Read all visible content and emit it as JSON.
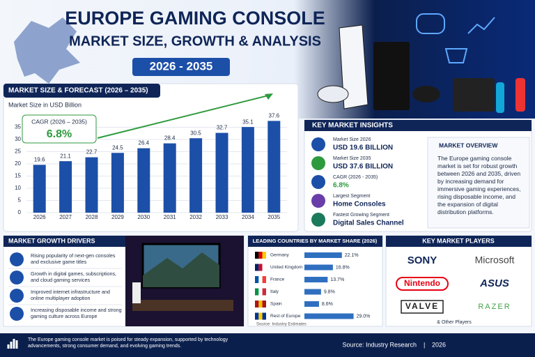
{
  "header": {
    "title": "EUROPE GAMING CONSOLE",
    "subtitle": "MARKET SIZE, GROWTH & ANALYSIS",
    "period": "2026 - 2035"
  },
  "chart_data": [
    {
      "type": "bar",
      "title": "MARKET SIZE & FORECAST (2026 – 2035)",
      "y_label": "Market Size in USD Billion",
      "categories": [
        "2026",
        "2027",
        "2028",
        "2029",
        "2030",
        "2031",
        "2032",
        "2033",
        "2034",
        "2035"
      ],
      "values": [
        19.6,
        21.1,
        22.7,
        24.5,
        26.4,
        28.4,
        30.5,
        32.7,
        35.1,
        37.6
      ],
      "color": "#1c4fa8",
      "ylim": [
        0,
        38
      ],
      "yticks": [
        0,
        5,
        10,
        15,
        20,
        25,
        30,
        35
      ],
      "grid": true,
      "annotation": {
        "label": "CAGR (2026 – 2035)",
        "value": "6.8%"
      }
    },
    {
      "type": "hbar",
      "title": "LEADING COUNTRIES BY MARKET SHARE (2026)",
      "categories": [
        "Germany",
        "United Kingdom",
        "France",
        "Italy",
        "Spain",
        "Rest of Europe"
      ],
      "values": [
        22.1,
        16.8,
        13.7,
        9.8,
        8.6,
        29.0
      ],
      "value_labels": [
        "22.1%",
        "16.8%",
        "13.7%",
        "9.8%",
        "8.6%",
        "29.0%"
      ],
      "color": "#2f6fc0",
      "xlim": [
        0,
        30
      ],
      "source": "Source: Industry Estimates"
    }
  ],
  "insights": {
    "title": "KEY MARKET INSIGHTS",
    "items": [
      {
        "label": "Market Size 2026",
        "value": "USD 19.6 BILLION"
      },
      {
        "label": "Market Size 2035",
        "value": "USD 37.6 BILLION"
      },
      {
        "label": "CAGR (2026 - 2035)",
        "value": "6.8%"
      },
      {
        "label": "Largest Segment",
        "value": "Home Consoles"
      },
      {
        "label": "Fastest Growing Segment",
        "value": "Digital Sales Channel"
      }
    ]
  },
  "overview": {
    "title": "MARKET OVERVIEW",
    "text": "The Europe gaming console market is set for robust growth between 2026 and 2035, driven by increasing demand for immersive gaming experiences, rising disposable income, and the expansion of digital distribution platforms."
  },
  "drivers": {
    "title": "MARKET GROWTH DRIVERS",
    "items": [
      "Rising popularity of next-gen consoles and exclusive game titles",
      "Growth in digital games, subscriptions, and cloud gaming services",
      "Improved internet infrastructure and online multiplayer adoption",
      "Increasing disposable income and strong gaming culture across Europe"
    ]
  },
  "players": {
    "title": "KEY MARKET PLAYERS",
    "names": [
      "SONY",
      "Microsoft",
      "Nintendo",
      "ASUS",
      "VALVE",
      "RAZER"
    ],
    "more": "& Other Players"
  },
  "footer": {
    "text": "The Europe gaming console market is poised for steady expansion, supported by technology advancements, strong consumer demand, and evolving gaming trends.",
    "source": "Source: Industry Research",
    "year": "2026"
  }
}
